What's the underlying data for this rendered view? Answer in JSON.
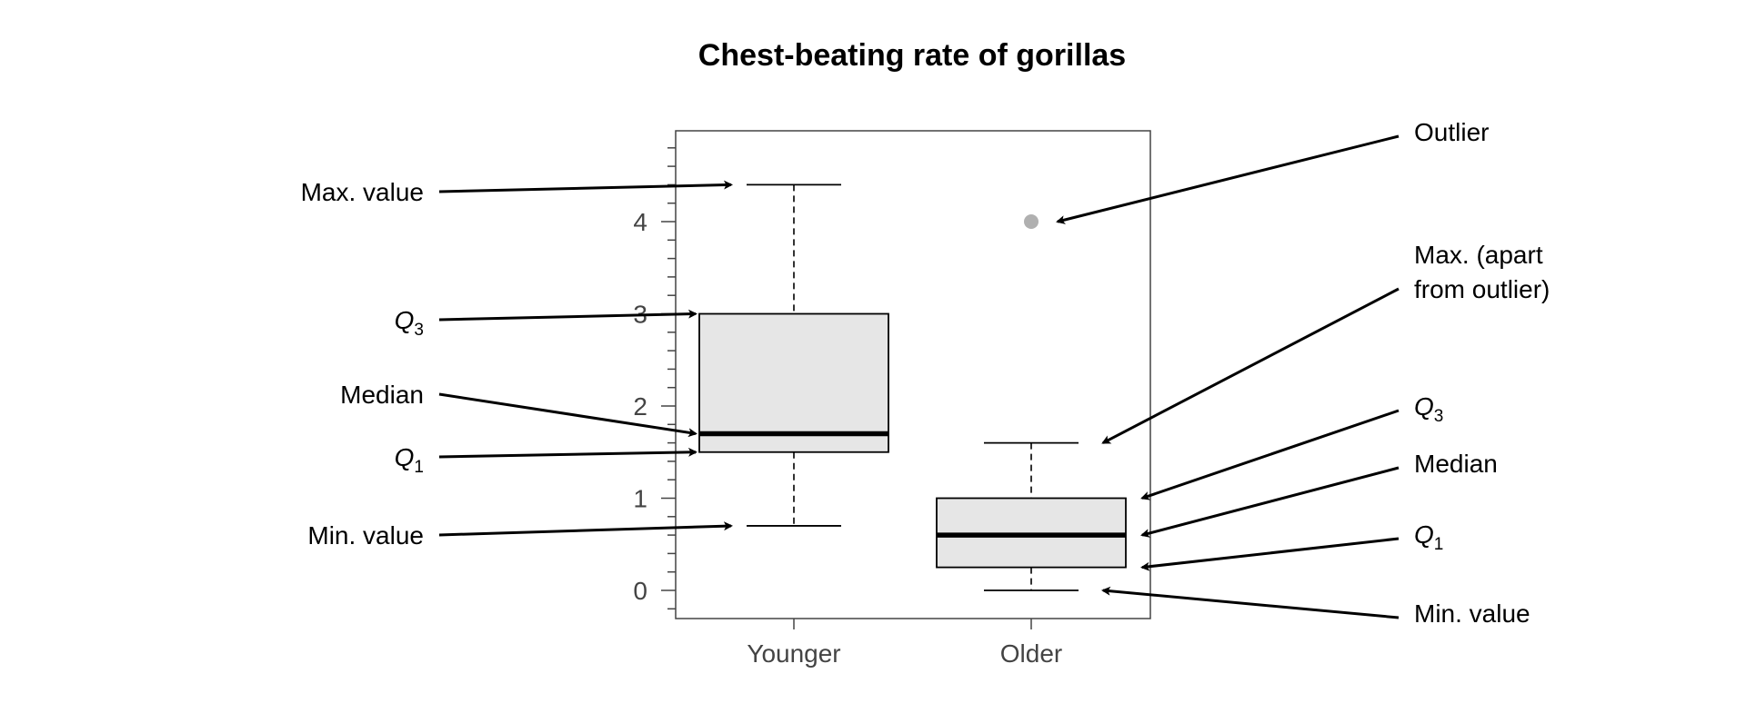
{
  "chart_data": {
    "type": "boxplot",
    "title": "Chest-beating rate of gorillas",
    "xlabel": "",
    "ylabel": "",
    "ylim": [
      -0.3,
      4.9
    ],
    "yticks": [
      0,
      1,
      2,
      3,
      4
    ],
    "ytick_labels": [
      "0",
      "1",
      "2",
      "3",
      "4"
    ],
    "minor_tick_step": 0.2,
    "grid": false,
    "categories": [
      "Younger",
      "Older"
    ],
    "boxes": [
      {
        "name": "Younger",
        "min": 0.7,
        "q1": 1.5,
        "median": 1.7,
        "q3": 3.0,
        "max": 4.4,
        "outliers": []
      },
      {
        "name": "Older",
        "min": 0.0,
        "q1": 0.25,
        "median": 0.6,
        "q3": 1.0,
        "max": 1.6,
        "outliers": [
          4.0
        ]
      }
    ],
    "colors": {
      "box_fill": "#e6e6e6",
      "outlier": "#b0b0b0",
      "line": "#000000",
      "axis": "#444444"
    },
    "annotations": {
      "left": [
        {
          "text": "Max. value",
          "box": 0,
          "stat": "max"
        },
        {
          "text": "Q",
          "sub": "3",
          "box": 0,
          "stat": "q3"
        },
        {
          "text": "Median",
          "box": 0,
          "stat": "median"
        },
        {
          "text": "Q",
          "sub": "1",
          "box": 0,
          "stat": "q1"
        },
        {
          "text": "Min. value",
          "box": 0,
          "stat": "min"
        }
      ],
      "right": [
        {
          "text": "Outlier",
          "box": 1,
          "stat": "outlier"
        },
        {
          "text": "Max. (apart",
          "text2": " from outlier)",
          "box": 1,
          "stat": "max"
        },
        {
          "text": "Q",
          "sub": "3",
          "box": 1,
          "stat": "q3"
        },
        {
          "text": "Median",
          "box": 1,
          "stat": "median"
        },
        {
          "text": "Q",
          "sub": "1",
          "box": 1,
          "stat": "q1"
        },
        {
          "text": "Min. value",
          "box": 1,
          "stat": "min"
        }
      ]
    }
  }
}
